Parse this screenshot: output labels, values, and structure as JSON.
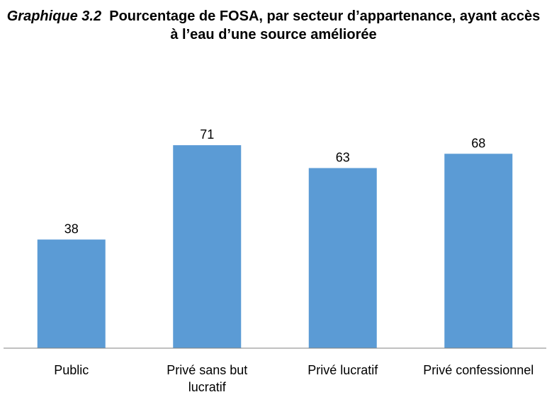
{
  "chart_data": {
    "type": "bar",
    "title_label": "Graphique 3.2",
    "title": "Pourcentage de FOSA, par secteur d’appartenance, ayant accès à l’eau d’une source améliorée",
    "categories": [
      "Public",
      "Privé sans but lucratif",
      "Privé lucratif",
      "Privé confessionnel"
    ],
    "values": [
      38,
      71,
      63,
      68
    ],
    "color": "#5b9bd5",
    "ylim": [
      0,
      100
    ]
  }
}
